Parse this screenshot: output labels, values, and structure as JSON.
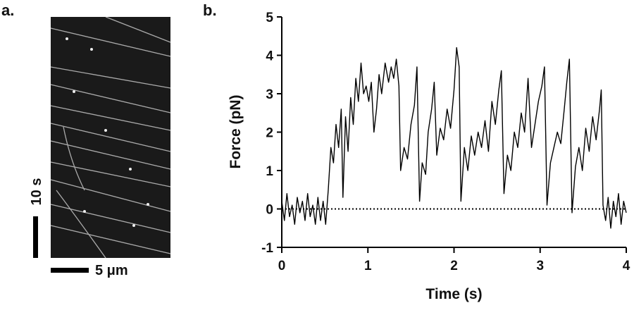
{
  "panel_a": {
    "label": "a.",
    "time_scale_label": "10 s",
    "length_scale_label": "5 μm"
  },
  "chart_data": {
    "type": "line",
    "panel_label": "b.",
    "x_label": "Time (s)",
    "y_label": "Force (pN)",
    "x": [
      0,
      0.03,
      0.06,
      0.09,
      0.12,
      0.15,
      0.18,
      0.21,
      0.24,
      0.27,
      0.3,
      0.33,
      0.36,
      0.39,
      0.42,
      0.45,
      0.48,
      0.51,
      0.54,
      0.57,
      0.6,
      0.63,
      0.66,
      0.69,
      0.71,
      0.74,
      0.77,
      0.8,
      0.83,
      0.86,
      0.89,
      0.92,
      0.95,
      0.98,
      1.01,
      1.04,
      1.07,
      1.1,
      1.13,
      1.16,
      1.2,
      1.24,
      1.27,
      1.3,
      1.33,
      1.36,
      1.38,
      1.42,
      1.46,
      1.5,
      1.54,
      1.57,
      1.6,
      1.63,
      1.67,
      1.7,
      1.74,
      1.77,
      1.8,
      1.84,
      1.88,
      1.92,
      1.96,
      2.0,
      2.03,
      2.06,
      2.08,
      2.12,
      2.16,
      2.2,
      2.24,
      2.28,
      2.32,
      2.36,
      2.4,
      2.44,
      2.48,
      2.52,
      2.55,
      2.58,
      2.62,
      2.66,
      2.7,
      2.74,
      2.78,
      2.82,
      2.86,
      2.9,
      2.94,
      2.98,
      3.02,
      3.05,
      3.08,
      3.12,
      3.16,
      3.2,
      3.24,
      3.28,
      3.31,
      3.34,
      3.37,
      3.41,
      3.45,
      3.49,
      3.53,
      3.57,
      3.61,
      3.65,
      3.69,
      3.71,
      3.73,
      3.76,
      3.79,
      3.82,
      3.85,
      3.88,
      3.91,
      3.94,
      3.97,
      4.0
    ],
    "series": [
      {
        "color": "#000000",
        "values": [
          0.2,
          -0.3,
          0.4,
          -0.2,
          0.1,
          -0.4,
          0.3,
          -0.1,
          0.2,
          -0.3,
          0.4,
          -0.2,
          0.1,
          -0.4,
          0.3,
          -0.3,
          0.2,
          -0.4,
          0.5,
          1.6,
          1.2,
          2.2,
          1.6,
          2.6,
          0.3,
          2.4,
          1.5,
          2.9,
          2.2,
          3.4,
          2.8,
          3.8,
          3.0,
          3.2,
          2.8,
          3.3,
          2.0,
          2.6,
          3.5,
          3.0,
          3.8,
          3.3,
          3.7,
          3.4,
          3.9,
          3.2,
          1.0,
          1.6,
          1.3,
          2.2,
          2.7,
          3.7,
          0.2,
          1.2,
          0.9,
          2.0,
          2.6,
          3.3,
          1.4,
          2.1,
          1.8,
          2.6,
          2.1,
          3.1,
          4.2,
          3.7,
          0.2,
          1.6,
          1.0,
          1.9,
          1.4,
          2.0,
          1.6,
          2.3,
          1.5,
          2.8,
          2.2,
          3.1,
          3.6,
          0.4,
          1.4,
          1.0,
          2.0,
          1.6,
          2.5,
          2.0,
          3.4,
          1.6,
          2.2,
          2.8,
          3.2,
          3.7,
          0.1,
          1.2,
          1.6,
          2.0,
          1.7,
          2.6,
          3.3,
          3.9,
          -0.1,
          1.1,
          1.6,
          1.0,
          2.1,
          1.5,
          2.4,
          1.8,
          2.6,
          3.1,
          0.1,
          -0.3,
          0.3,
          -0.5,
          0.2,
          -0.2,
          0.4,
          -0.4,
          0.2,
          -0.1
        ]
      }
    ],
    "reference_y": 0,
    "xlim": [
      0,
      4
    ],
    "xticks": [
      0,
      1,
      2,
      3,
      4
    ],
    "ylim": [
      -1,
      5
    ],
    "yticks": [
      -1,
      0,
      1,
      2,
      3,
      4,
      5
    ]
  }
}
